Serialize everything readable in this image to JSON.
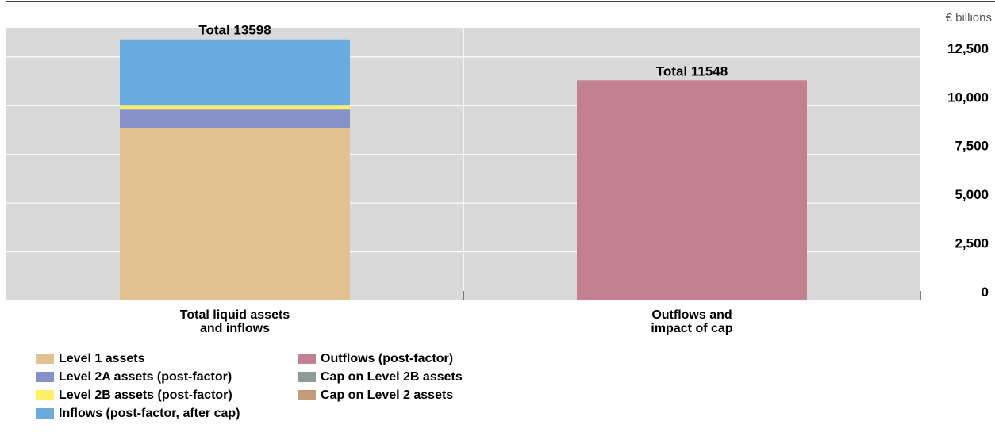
{
  "chart_data": {
    "type": "bar",
    "stacked": true,
    "unit_label": "€ billions",
    "categories": [
      [
        "Total liquid assets",
        "and inflows"
      ],
      [
        "Outflows and",
        "impact of cap"
      ]
    ],
    "totals": [
      "Total 13598",
      "Total 11548"
    ],
    "y_ticks": [
      0,
      2500,
      5000,
      7500,
      10000,
      12500
    ],
    "y_tick_labels": [
      "0",
      "2,500",
      "5,000",
      "7,500",
      "10,000",
      "12,500"
    ],
    "ylim": [
      0,
      14000
    ],
    "grid": true,
    "y_axis_position": "right",
    "series": [
      {
        "name": "Level 1 assets",
        "color": "#e2c291",
        "values": [
          8850,
          0
        ]
      },
      {
        "name": "Level 2A assets (post-factor)",
        "color": "#8591c8",
        "values": [
          950,
          0
        ]
      },
      {
        "name": "Level 2B assets (post-factor)",
        "color": "#ffef66",
        "values": [
          200,
          0
        ]
      },
      {
        "name": "Inflows (post-factor, after cap)",
        "color": "#6aace0",
        "values": [
          3400,
          0
        ]
      },
      {
        "name": "Outflows (post-factor)",
        "color": "#c38090",
        "values": [
          0,
          11300
        ]
      },
      {
        "name": "Cap on Level 2B assets",
        "color": "#929c96",
        "values": [
          0,
          0
        ]
      },
      {
        "name": "Cap on Level 2 assets",
        "color": "#c49a78",
        "values": [
          0,
          0
        ]
      }
    ]
  }
}
